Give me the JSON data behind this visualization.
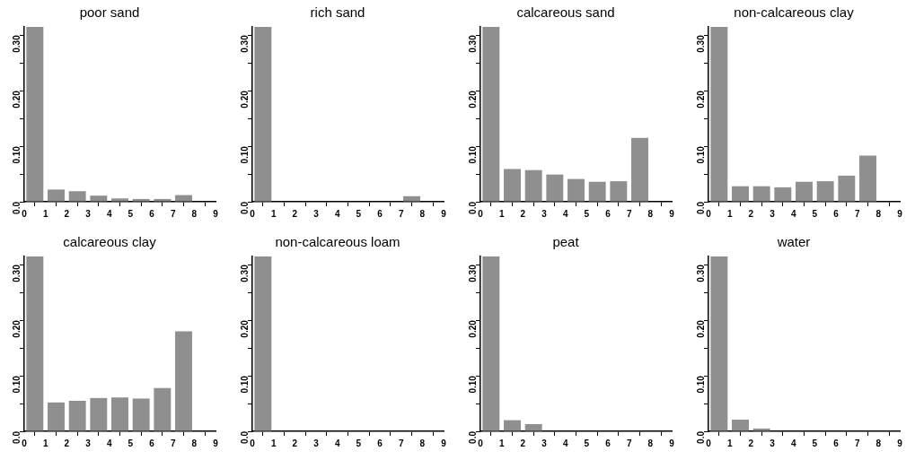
{
  "chart_data": [
    {
      "type": "histogram",
      "title": "poor sand",
      "bins": [
        0,
        1,
        2,
        3,
        4,
        5,
        6,
        7,
        8
      ],
      "values": [
        0.315,
        0.022,
        0.019,
        0.011,
        0.006,
        0.005,
        0.005,
        0.012
      ],
      "color": "#8f8f8f",
      "xlim": [
        0,
        9
      ],
      "xticks": [
        0,
        1,
        2,
        3,
        4,
        5,
        6,
        7,
        8,
        9
      ],
      "ylim": [
        0,
        0.315
      ],
      "yticks": [
        {
          "value": 0,
          "label": "0.0"
        },
        {
          "value": 0.05,
          "label": null
        },
        {
          "value": 0.1,
          "label": "0.10"
        },
        {
          "value": 0.15,
          "label": null
        },
        {
          "value": 0.2,
          "label": "0.20"
        },
        {
          "value": 0.25,
          "label": null
        },
        {
          "value": 0.3,
          "label": "0.30"
        }
      ]
    },
    {
      "type": "histogram",
      "title": "rich sand",
      "bins": [
        0,
        1,
        2,
        3,
        4,
        5,
        6,
        7,
        8
      ],
      "values": [
        0.315,
        0,
        0,
        0,
        0,
        0,
        0,
        0.01
      ],
      "color": "#8f8f8f",
      "xlim": [
        0,
        9
      ],
      "xticks": [
        0,
        1,
        2,
        3,
        4,
        5,
        6,
        7,
        8,
        9
      ],
      "ylim": [
        0,
        0.315
      ],
      "yticks": [
        {
          "value": 0,
          "label": "0.0"
        },
        {
          "value": 0.05,
          "label": null
        },
        {
          "value": 0.1,
          "label": "0.10"
        },
        {
          "value": 0.15,
          "label": null
        },
        {
          "value": 0.2,
          "label": "0.20"
        },
        {
          "value": 0.25,
          "label": null
        },
        {
          "value": 0.3,
          "label": "0.30"
        }
      ]
    },
    {
      "type": "histogram",
      "title": "calcareous sand",
      "bins": [
        0,
        1,
        2,
        3,
        4,
        5,
        6,
        7,
        8
      ],
      "values": [
        0.315,
        0.059,
        0.057,
        0.049,
        0.041,
        0.036,
        0.037,
        0.115
      ],
      "color": "#8f8f8f",
      "xlim": [
        0,
        9
      ],
      "xticks": [
        0,
        1,
        2,
        3,
        4,
        5,
        6,
        7,
        8,
        9
      ],
      "ylim": [
        0,
        0.315
      ],
      "yticks": [
        {
          "value": 0,
          "label": "0.0"
        },
        {
          "value": 0.05,
          "label": null
        },
        {
          "value": 0.1,
          "label": "0.10"
        },
        {
          "value": 0.15,
          "label": null
        },
        {
          "value": 0.2,
          "label": "0.20"
        },
        {
          "value": 0.25,
          "label": null
        },
        {
          "value": 0.3,
          "label": "0.30"
        }
      ]
    },
    {
      "type": "histogram",
      "title": "non-calcareous clay",
      "bins": [
        0,
        1,
        2,
        3,
        4,
        5,
        6,
        7,
        8
      ],
      "values": [
        0.315,
        0.028,
        0.028,
        0.026,
        0.036,
        0.037,
        0.047,
        0.083
      ],
      "color": "#8f8f8f",
      "xlim": [
        0,
        9
      ],
      "xticks": [
        0,
        1,
        2,
        3,
        4,
        5,
        6,
        7,
        8,
        9
      ],
      "ylim": [
        0,
        0.315
      ],
      "yticks": [
        {
          "value": 0,
          "label": "0.0"
        },
        {
          "value": 0.05,
          "label": null
        },
        {
          "value": 0.1,
          "label": "0.10"
        },
        {
          "value": 0.15,
          "label": null
        },
        {
          "value": 0.2,
          "label": "0.20"
        },
        {
          "value": 0.25,
          "label": null
        },
        {
          "value": 0.3,
          "label": "0.30"
        }
      ]
    },
    {
      "type": "histogram",
      "title": "calcareous clay",
      "bins": [
        0,
        1,
        2,
        3,
        4,
        5,
        6,
        7,
        8
      ],
      "values": [
        0.315,
        0.052,
        0.055,
        0.06,
        0.061,
        0.059,
        0.078,
        0.18
      ],
      "color": "#8f8f8f",
      "xlim": [
        0,
        9
      ],
      "xticks": [
        0,
        1,
        2,
        3,
        4,
        5,
        6,
        7,
        8,
        9
      ],
      "ylim": [
        0,
        0.315
      ],
      "yticks": [
        {
          "value": 0,
          "label": "0.0"
        },
        {
          "value": 0.05,
          "label": null
        },
        {
          "value": 0.1,
          "label": "0.10"
        },
        {
          "value": 0.15,
          "label": null
        },
        {
          "value": 0.2,
          "label": "0.20"
        },
        {
          "value": 0.25,
          "label": null
        },
        {
          "value": 0.3,
          "label": "0.30"
        }
      ]
    },
    {
      "type": "histogram",
      "title": "non-calcareous loam",
      "bins": [
        0,
        1,
        2,
        3,
        4,
        5,
        6,
        7,
        8
      ],
      "values": [
        0.315,
        0,
        0,
        0,
        0,
        0,
        0,
        0
      ],
      "color": "#8f8f8f",
      "xlim": [
        0,
        9
      ],
      "xticks": [
        0,
        1,
        2,
        3,
        4,
        5,
        6,
        7,
        8,
        9
      ],
      "ylim": [
        0,
        0.315
      ],
      "yticks": [
        {
          "value": 0,
          "label": "0.0"
        },
        {
          "value": 0.05,
          "label": null
        },
        {
          "value": 0.1,
          "label": "0.10"
        },
        {
          "value": 0.15,
          "label": null
        },
        {
          "value": 0.2,
          "label": "0.20"
        },
        {
          "value": 0.25,
          "label": null
        },
        {
          "value": 0.3,
          "label": "0.30"
        }
      ]
    },
    {
      "type": "histogram",
      "title": "peat",
      "bins": [
        0,
        1,
        2,
        3,
        4,
        5,
        6,
        7,
        8
      ],
      "values": [
        0.315,
        0.02,
        0.013,
        0,
        0,
        0,
        0,
        0
      ],
      "color": "#8f8f8f",
      "xlim": [
        0,
        9
      ],
      "xticks": [
        0,
        1,
        2,
        3,
        4,
        5,
        6,
        7,
        8,
        9
      ],
      "ylim": [
        0,
        0.315
      ],
      "yticks": [
        {
          "value": 0,
          "label": "0.0"
        },
        {
          "value": 0.05,
          "label": null
        },
        {
          "value": 0.1,
          "label": "0.10"
        },
        {
          "value": 0.15,
          "label": null
        },
        {
          "value": 0.2,
          "label": "0.20"
        },
        {
          "value": 0.25,
          "label": null
        },
        {
          "value": 0.3,
          "label": "0.30"
        }
      ]
    },
    {
      "type": "histogram",
      "title": "water",
      "bins": [
        0,
        1,
        2,
        3,
        4,
        5,
        6,
        7,
        8
      ],
      "values": [
        0.315,
        0.021,
        0.005,
        0,
        0,
        0,
        0,
        0
      ],
      "color": "#8f8f8f",
      "xlim": [
        0,
        9
      ],
      "xticks": [
        0,
        1,
        2,
        3,
        4,
        5,
        6,
        7,
        8,
        9
      ],
      "ylim": [
        0,
        0.315
      ],
      "yticks": [
        {
          "value": 0,
          "label": "0.0"
        },
        {
          "value": 0.05,
          "label": null
        },
        {
          "value": 0.1,
          "label": "0.10"
        },
        {
          "value": 0.15,
          "label": null
        },
        {
          "value": 0.2,
          "label": "0.20"
        },
        {
          "value": 0.25,
          "label": null
        },
        {
          "value": 0.3,
          "label": "0.30"
        }
      ]
    }
  ]
}
